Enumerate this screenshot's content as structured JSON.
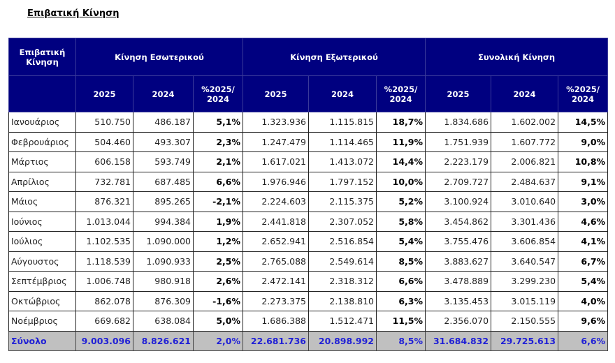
{
  "title": "Επιβατική Κίνηση",
  "header": {
    "corner": "Επιβατική Κίνηση",
    "groups": [
      "Κίνηση Εσωτερικού",
      "Κίνηση Εξωτερικού",
      "Συνολική Κίνηση"
    ],
    "subcols": [
      "2025",
      "2024",
      "%2025/ 2024"
    ]
  },
  "rows": [
    [
      "Ιανουάριος",
      "510.750",
      "486.187",
      "5,1%",
      "1.323.936",
      "1.115.815",
      "18,7%",
      "1.834.686",
      "1.602.002",
      "14,5%"
    ],
    [
      "Φεβρουάριος",
      "504.460",
      "493.307",
      "2,3%",
      "1.247.479",
      "1.114.465",
      "11,9%",
      "1.751.939",
      "1.607.772",
      "9,0%"
    ],
    [
      "Μάρτιος",
      "606.158",
      "593.749",
      "2,1%",
      "1.617.021",
      "1.413.072",
      "14,4%",
      "2.223.179",
      "2.006.821",
      "10,8%"
    ],
    [
      "Απρίλιος",
      "732.781",
      "687.485",
      "6,6%",
      "1.976.946",
      "1.797.152",
      "10,0%",
      "2.709.727",
      "2.484.637",
      "9,1%"
    ],
    [
      "Μάιος",
      "876.321",
      "895.265",
      "-2,1%",
      "2.224.603",
      "2.115.375",
      "5,2%",
      "3.100.924",
      "3.010.640",
      "3,0%"
    ],
    [
      "Ιούνιος",
      "1.013.044",
      "994.384",
      "1,9%",
      "2.441.818",
      "2.307.052",
      "5,8%",
      "3.454.862",
      "3.301.436",
      "4,6%"
    ],
    [
      "Ιούλιος",
      "1.102.535",
      "1.090.000",
      "1,2%",
      "2.652.941",
      "2.516.854",
      "5,4%",
      "3.755.476",
      "3.606.854",
      "4,1%"
    ],
    [
      "Αύγουστος",
      "1.118.539",
      "1.090.933",
      "2,5%",
      "2.765.088",
      "2.549.614",
      "8,5%",
      "3.883.627",
      "3.640.547",
      "6,7%"
    ],
    [
      "Σεπτέμβριος",
      "1.006.748",
      "980.918",
      "2,6%",
      "2.472.141",
      "2.318.312",
      "6,6%",
      "3.478.889",
      "3.299.230",
      "5,4%"
    ],
    [
      "Οκτώβριος",
      "862.078",
      "876.309",
      "-1,6%",
      "2.273.375",
      "2.138.810",
      "6,3%",
      "3.135.453",
      "3.015.119",
      "4,0%"
    ],
    [
      "Νοέμβριος",
      "669.682",
      "638.084",
      "5,0%",
      "1.686.388",
      "1.512.471",
      "11,5%",
      "2.356.070",
      "2.150.555",
      "9,6%"
    ]
  ],
  "total": [
    "Σύνολο",
    "9.003.096",
    "8.826.621",
    "2,0%",
    "22.681.736",
    "20.898.992",
    "8,5%",
    "31.684.832",
    "29.725.613",
    "6,6%"
  ],
  "colors": {
    "header_bg": "#000080",
    "total_bg": "#c0c0c0",
    "total_text": "#1f1fd6"
  }
}
